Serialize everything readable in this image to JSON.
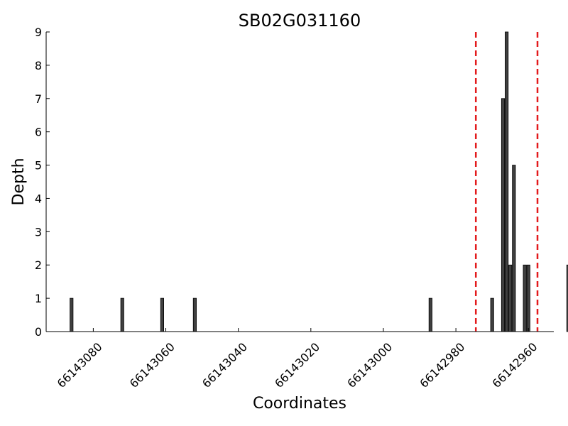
{
  "chart_data": {
    "type": "bar",
    "title": "SB02G031160",
    "xlabel": "Coordinates",
    "ylabel": "Depth",
    "x_axis_reversed": true,
    "xlim": [
      66143093,
      66142953
    ],
    "ylim": [
      0,
      9
    ],
    "x_ticks": [
      66143080,
      66143060,
      66143040,
      66143020,
      66143000,
      66142980,
      66142960
    ],
    "y_ticks": [
      0,
      1,
      2,
      3,
      4,
      5,
      6,
      7,
      8,
      9
    ],
    "x_tick_labels": [
      "66143080",
      "66143060",
      "66143040",
      "66143020",
      "66143000",
      "66142980",
      "66142960"
    ],
    "y_tick_labels": [
      "0",
      "1",
      "2",
      "3",
      "4",
      "5",
      "6",
      "7",
      "8",
      "9"
    ],
    "grid": false,
    "bar_color": "#404040",
    "reference_line_color": "#e31a1c",
    "reference_lines": [
      66142974.5,
      66142957.5
    ],
    "points": [
      {
        "x": 66143086,
        "y": 1
      },
      {
        "x": 66143072,
        "y": 1
      },
      {
        "x": 66143061,
        "y": 1
      },
      {
        "x": 66143052,
        "y": 1
      },
      {
        "x": 66142987,
        "y": 1
      },
      {
        "x": 66142970,
        "y": 1
      },
      {
        "x": 66142967,
        "y": 7
      },
      {
        "x": 66142966,
        "y": 9
      },
      {
        "x": 66142965,
        "y": 2
      },
      {
        "x": 66142964,
        "y": 5
      },
      {
        "x": 66142961,
        "y": 2
      },
      {
        "x": 66142960,
        "y": 2
      },
      {
        "x": 66142949,
        "y": 2
      }
    ]
  }
}
